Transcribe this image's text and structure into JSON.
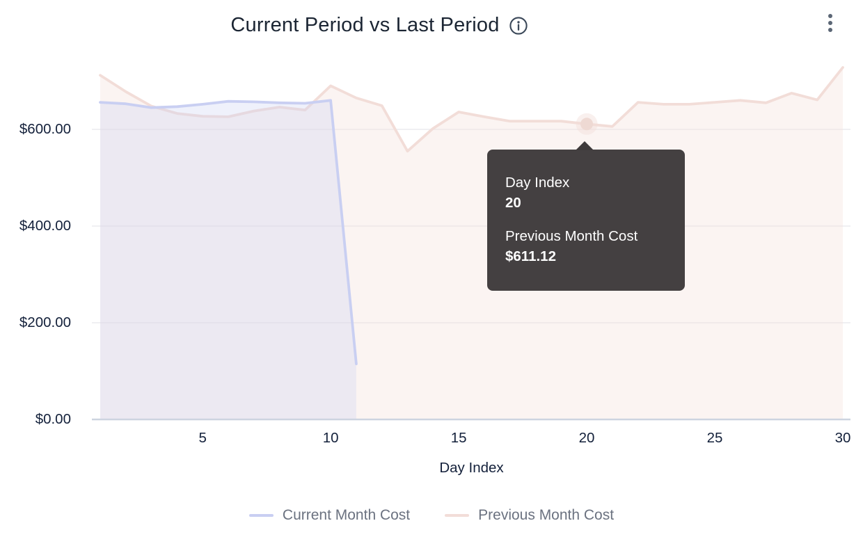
{
  "header": {
    "title": "Current Period vs Last Period",
    "info_icon": "info-circle-icon",
    "menu_icon": "kebab-menu-icon"
  },
  "chart_data": {
    "type": "area",
    "title": "Current Period vs Last Period",
    "xlabel": "Day Index",
    "ylabel": "",
    "x_range": [
      1,
      30
    ],
    "x_ticks": [
      5,
      10,
      15,
      20,
      25,
      30
    ],
    "y_ticks": [
      {
        "label": "$600.00",
        "value": 600
      },
      {
        "label": "$400.00",
        "value": 400
      },
      {
        "label": "$200.00",
        "value": 200
      },
      {
        "label": "$0.00",
        "value": 0
      }
    ],
    "ylim": [
      0,
      755
    ],
    "grid": "horizontal",
    "legend_position": "bottom",
    "series": [
      {
        "name": "Current Month Cost",
        "line_color": "#c9cff2",
        "fill_color": "rgba(201,207,242,0.30)",
        "start_day": 1,
        "values": [
          656,
          653,
          645,
          647,
          652,
          658,
          657,
          655,
          654,
          660,
          115
        ]
      },
      {
        "name": "Previous Month Cost",
        "line_color": "#f2ddd8",
        "fill_color": "rgba(243,221,215,0.33)",
        "start_day": 1,
        "values": [
          712,
          678,
          648,
          633,
          627,
          626,
          638,
          646,
          640,
          690,
          665,
          649,
          555,
          602,
          636,
          626,
          617,
          617,
          617,
          611.12,
          606,
          656,
          652,
          652,
          656,
          660,
          655,
          675,
          661,
          728
        ]
      }
    ],
    "highlight": {
      "series": "Previous Month Cost",
      "day": 20,
      "value": 611.12,
      "dot_color": "#eed9d3",
      "halo_color": "rgba(242,222,217,0.45)"
    }
  },
  "tooltip": {
    "x_label": "Day Index",
    "x_value": "20",
    "series_label": "Previous Month Cost",
    "series_value": "$611.12"
  },
  "legend": {
    "items": [
      {
        "label": "Current Month Cost",
        "color": "#c9cff2"
      },
      {
        "label": "Previous Month Cost",
        "color": "#f2ddd8"
      }
    ]
  },
  "colors": {
    "title_text": "#1b2533",
    "axis_text": "#13203a",
    "legend_text": "#6b7280",
    "gridline": "#ececef",
    "axis_line": "#cdd4e0",
    "tooltip_bg": "#3e3a3b",
    "tooltip_text": "#ffffff",
    "menu_icon": "#5b6675",
    "info_icon": "#3b4859"
  }
}
